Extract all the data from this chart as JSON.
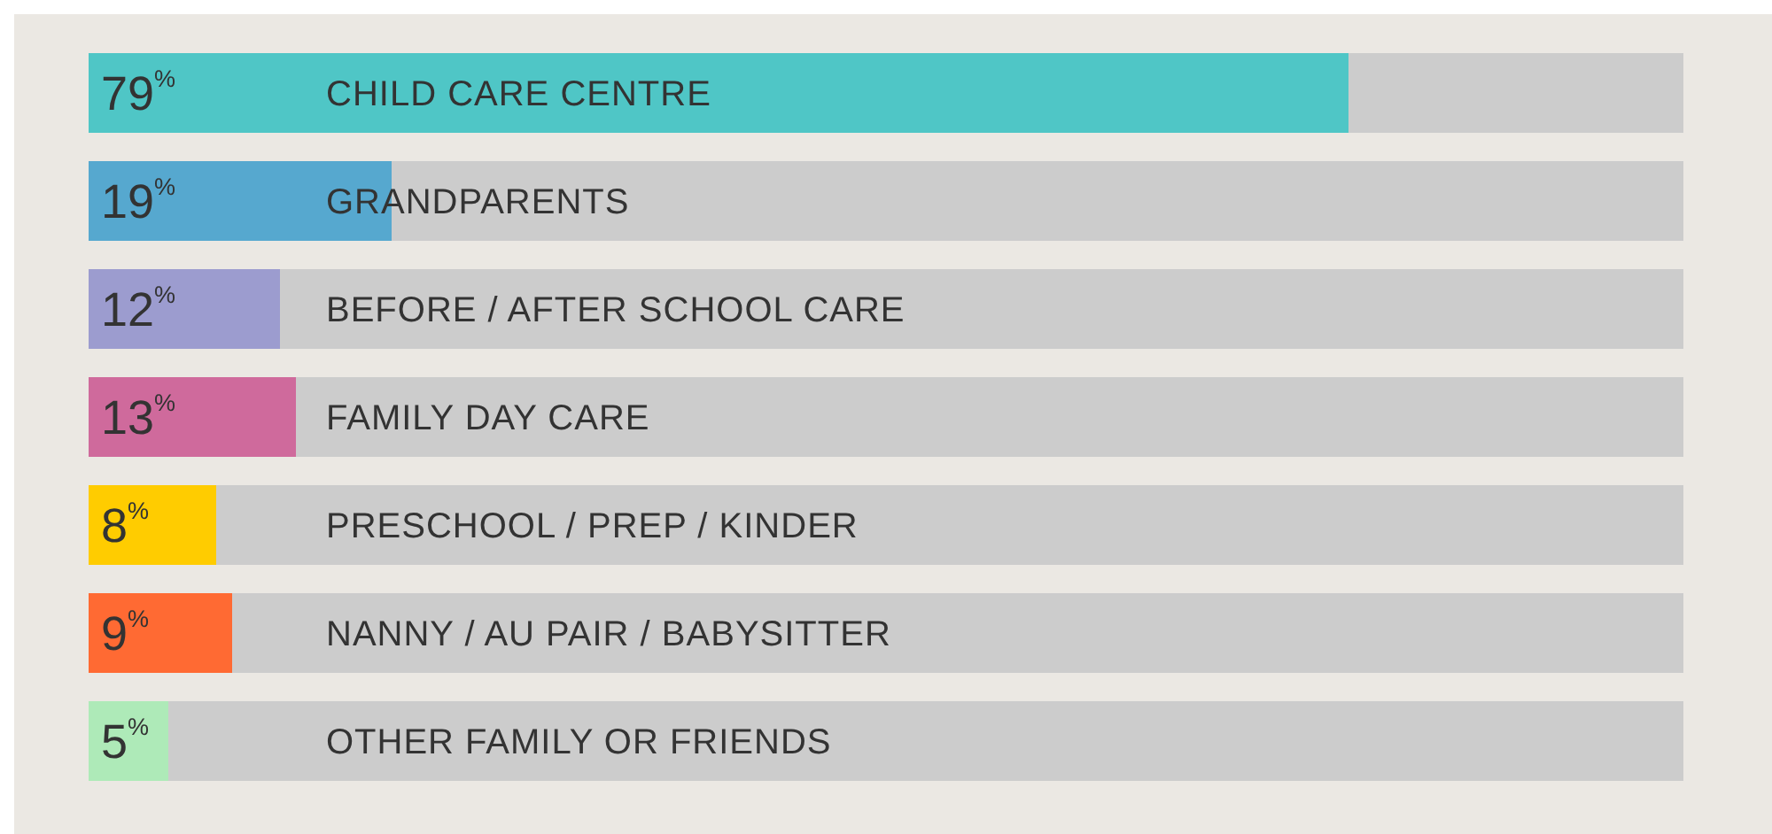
{
  "chart_data": {
    "type": "bar",
    "orientation": "horizontal",
    "categories": [
      "CHILD CARE CENTRE",
      "GRANDPARENTS",
      "BEFORE / AFTER SCHOOL CARE",
      "FAMILY DAY CARE",
      "PRESCHOOL / PREP / KINDER",
      "NANNY / AU PAIR / BABYSITTER",
      "OTHER FAMILY OR FRIENDS"
    ],
    "values": [
      79,
      19,
      12,
      13,
      8,
      9,
      5
    ],
    "colors": [
      "#4fc6c6",
      "#56a8cf",
      "#9c9ccf",
      "#cf6a9c",
      "#ffcc00",
      "#ff6a33",
      "#aeeab8"
    ],
    "value_labels": [
      "79$^{%}$",
      "19$^{%}$",
      "12$^{%}$",
      "13$^{%}$",
      "8$^{%}$",
      "9$^{%}$",
      "5$^{%}$"
    ],
    "xlim": [
      0,
      100
    ],
    "tick_labels": false
  }
}
